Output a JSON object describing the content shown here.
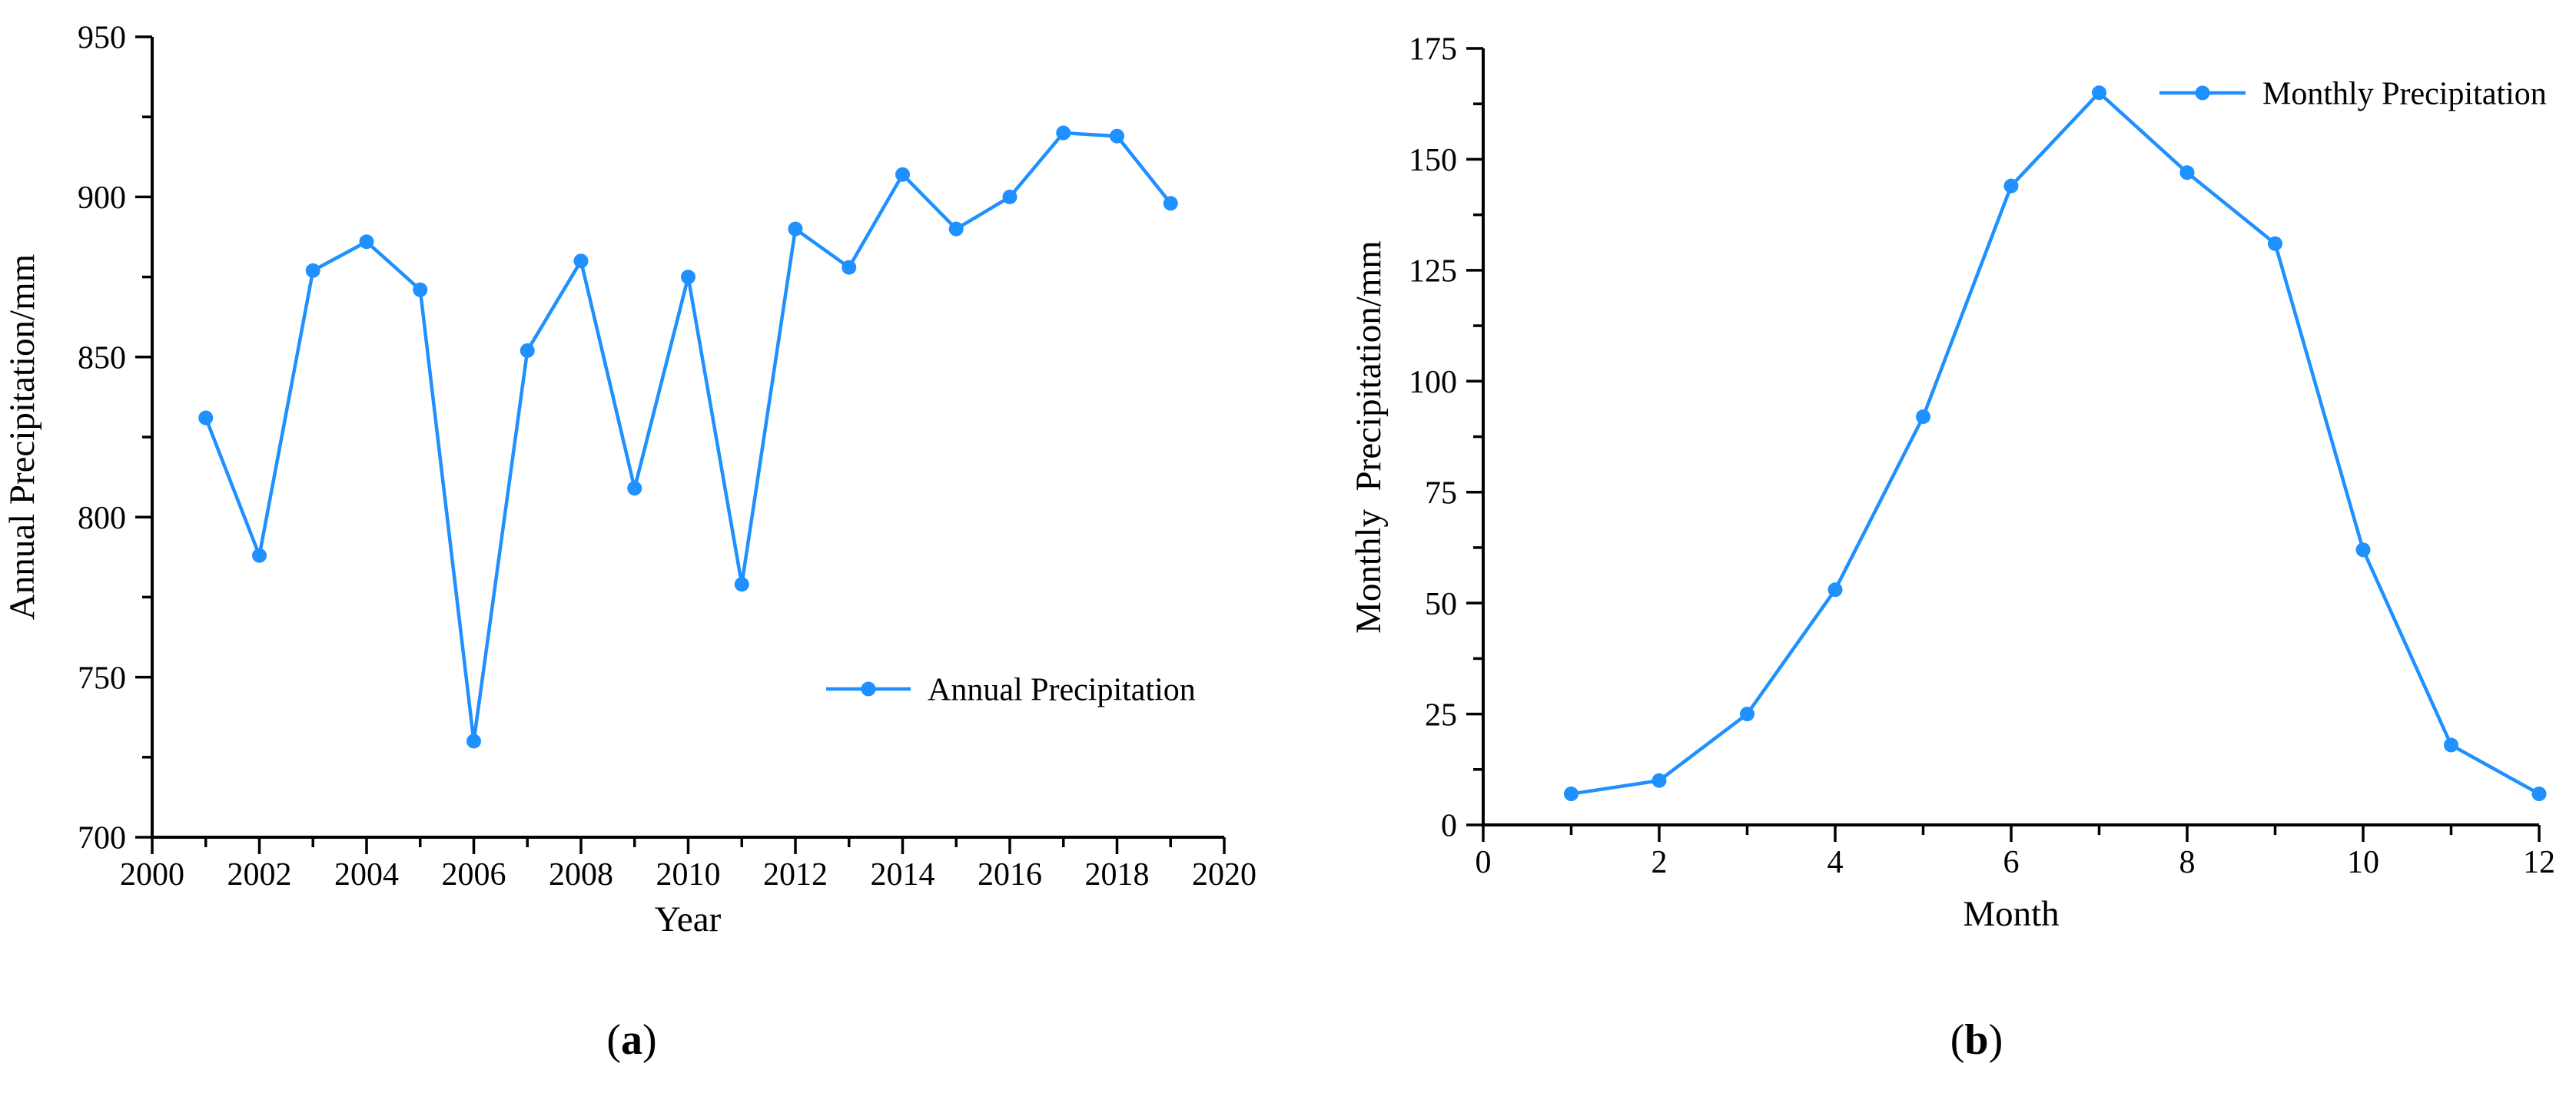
{
  "figure": {
    "background": "#ffffff",
    "axis_color": "#000000",
    "captions": {
      "a_open": "(",
      "a_letter": "a",
      "a_close": ")",
      "b_open": "(",
      "b_letter": "b",
      "b_close": ")"
    }
  },
  "chart_data": [
    {
      "type": "line",
      "panel": "a",
      "title": "",
      "xlabel": "Year",
      "ylabel": "Annual Precipitation/mm",
      "legend": "Annual Precipitation",
      "legend_position": "right-center-inside",
      "line_color": "#1E90FF",
      "grid": false,
      "x": [
        2001,
        2002,
        2003,
        2004,
        2005,
        2006,
        2007,
        2008,
        2009,
        2010,
        2011,
        2012,
        2013,
        2014,
        2015,
        2016,
        2017,
        2018,
        2019
      ],
      "y": [
        831,
        788,
        877,
        886,
        871,
        730,
        852,
        880,
        809,
        875,
        779,
        890,
        878,
        907,
        890,
        900,
        920,
        919,
        898
      ],
      "xlim": [
        2000,
        2020
      ],
      "ylim": [
        700,
        950
      ],
      "x_major_ticks": [
        2000,
        2002,
        2004,
        2006,
        2008,
        2010,
        2012,
        2014,
        2016,
        2018,
        2020
      ],
      "x_minor_ticks": [
        2001,
        2003,
        2005,
        2007,
        2009,
        2011,
        2013,
        2015,
        2017,
        2019
      ],
      "y_major_ticks": [
        700,
        750,
        800,
        850,
        900,
        950
      ],
      "y_minor_ticks": [
        725,
        775,
        825,
        875,
        925
      ]
    },
    {
      "type": "line",
      "panel": "b",
      "title": "",
      "xlabel": "Month",
      "ylabel": "Monthly  Precipitation/mm",
      "legend": "Monthly Precipitation",
      "legend_position": "top-right-inside",
      "line_color": "#1E90FF",
      "grid": false,
      "x": [
        1,
        2,
        3,
        4,
        5,
        6,
        7,
        8,
        9,
        10,
        11,
        12
      ],
      "y": [
        7,
        10,
        25,
        53,
        92,
        144,
        165,
        147,
        131,
        62,
        18,
        7
      ],
      "xlim": [
        0,
        12
      ],
      "ylim": [
        0,
        175
      ],
      "x_major_ticks": [
        0,
        2,
        4,
        6,
        8,
        10,
        12
      ],
      "x_minor_ticks": [
        1,
        3,
        5,
        7,
        9,
        11
      ],
      "y_major_ticks": [
        0,
        25,
        50,
        75,
        100,
        125,
        150,
        175
      ],
      "y_minor_ticks": [
        12.5,
        37.5,
        62.5,
        87.5,
        112.5,
        137.5,
        162.5
      ]
    }
  ]
}
